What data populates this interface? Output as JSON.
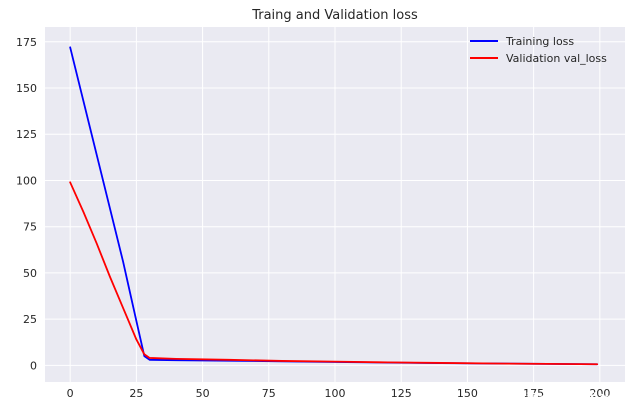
{
  "chart_data": {
    "type": "line",
    "title": "Traing and Validation loss",
    "xlabel": "",
    "ylabel": "",
    "xlim": [
      -9.5,
      209.5
    ],
    "ylim": [
      -9,
      183
    ],
    "x_ticks": [
      0,
      25,
      50,
      75,
      100,
      125,
      150,
      175,
      200
    ],
    "y_ticks": [
      0,
      25,
      50,
      75,
      100,
      125,
      150,
      175
    ],
    "grid": true,
    "legend_position": "top-right",
    "series": [
      {
        "name": "Training loss",
        "color": "#0000ff",
        "x": [
          0,
          5,
          10,
          15,
          20,
          25,
          28,
          30,
          40,
          60,
          80,
          100,
          120,
          140,
          160,
          180,
          199
        ],
        "y": [
          172,
          143,
          114,
          85,
          56,
          24,
          5,
          3,
          2.8,
          2.5,
          2.2,
          1.8,
          1.5,
          1.2,
          1.0,
          0.8,
          0.6
        ]
      },
      {
        "name": "Validation val_loss",
        "color": "#ff0000",
        "x": [
          0,
          5,
          10,
          15,
          20,
          25,
          28,
          30,
          40,
          60,
          80,
          100,
          120,
          140,
          160,
          180,
          199
        ],
        "y": [
          99,
          83,
          66,
          48,
          31,
          14,
          6,
          4,
          3.5,
          3,
          2.4,
          2.0,
          1.6,
          1.3,
          1.0,
          0.8,
          0.6
        ]
      }
    ]
  },
  "watermark": {
    "text": "@稀土掘金技术社区"
  },
  "colors": {
    "plot_background": "#eaeaf2",
    "grid": "#ffffff"
  }
}
